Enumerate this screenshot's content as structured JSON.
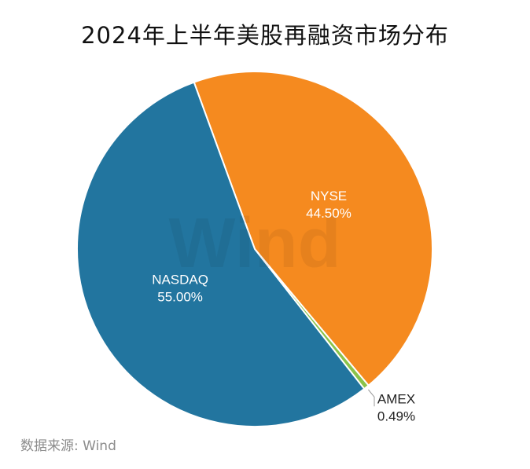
{
  "title": "2024年上半年美股再融资市场分布",
  "source": "数据来源: Wind",
  "watermark": "Wind",
  "chart_data": {
    "type": "pie",
    "title": "2024年上半年美股再融资市场分布",
    "slices": [
      {
        "name": "NYSE",
        "value": 44.5,
        "label": "44.50%",
        "color": "#f58a1f"
      },
      {
        "name": "AMEX",
        "value": 0.49,
        "label": "0.49%",
        "color": "#8bc34a"
      },
      {
        "name": "NASDAQ",
        "value": 55.0,
        "label": "55.00%",
        "color": "#22759f"
      }
    ],
    "start_angle_deg": -20
  }
}
